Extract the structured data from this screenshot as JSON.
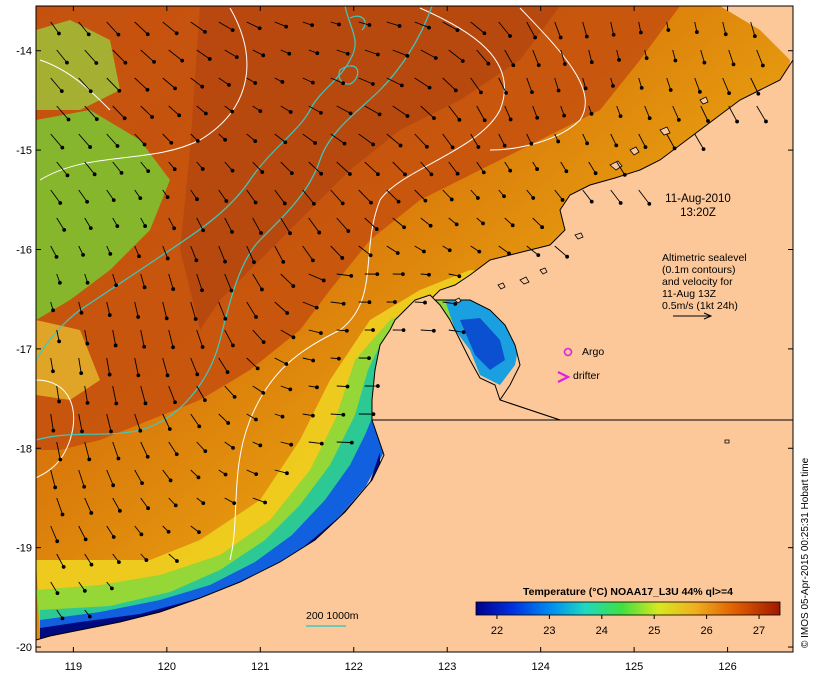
{
  "map": {
    "lon_ticks": [
      "119",
      "120",
      "121",
      "122",
      "123",
      "124",
      "125",
      "126"
    ],
    "lat_ticks": [
      "-14",
      "-15",
      "-16",
      "-17",
      "-18",
      "-19",
      "-20"
    ],
    "lon_range": [
      118.6,
      126.7
    ],
    "lat_range": [
      -20.05,
      -13.55
    ],
    "datetime_line1": "11-Aug-2010",
    "datetime_line2": "13:20Z",
    "altimetry_lines": [
      "Altimetric sealevel",
      "(0.1m contours)",
      "and velocity for",
      "11-Aug 13Z",
      "0.5m/s (1kt 24h)"
    ],
    "argo_label": "Argo",
    "drifter_label": "drifter",
    "isobath_label": "200  1000m",
    "credit": "© IMOS 05-Apr-2015 00:25:31 Hobart time",
    "colors": {
      "land": "#fcc89a",
      "isobath": "#3fc8c0",
      "contour": "#ffffff",
      "argo": "#e020e0",
      "drifter": "#e020e0"
    }
  },
  "colorbar": {
    "title": "Temperature (°C) NOAA17_L3U 44% ql>=4",
    "ticks": [
      "22",
      "23",
      "24",
      "25",
      "26",
      "27"
    ],
    "range": [
      21.6,
      27.4
    ]
  }
}
